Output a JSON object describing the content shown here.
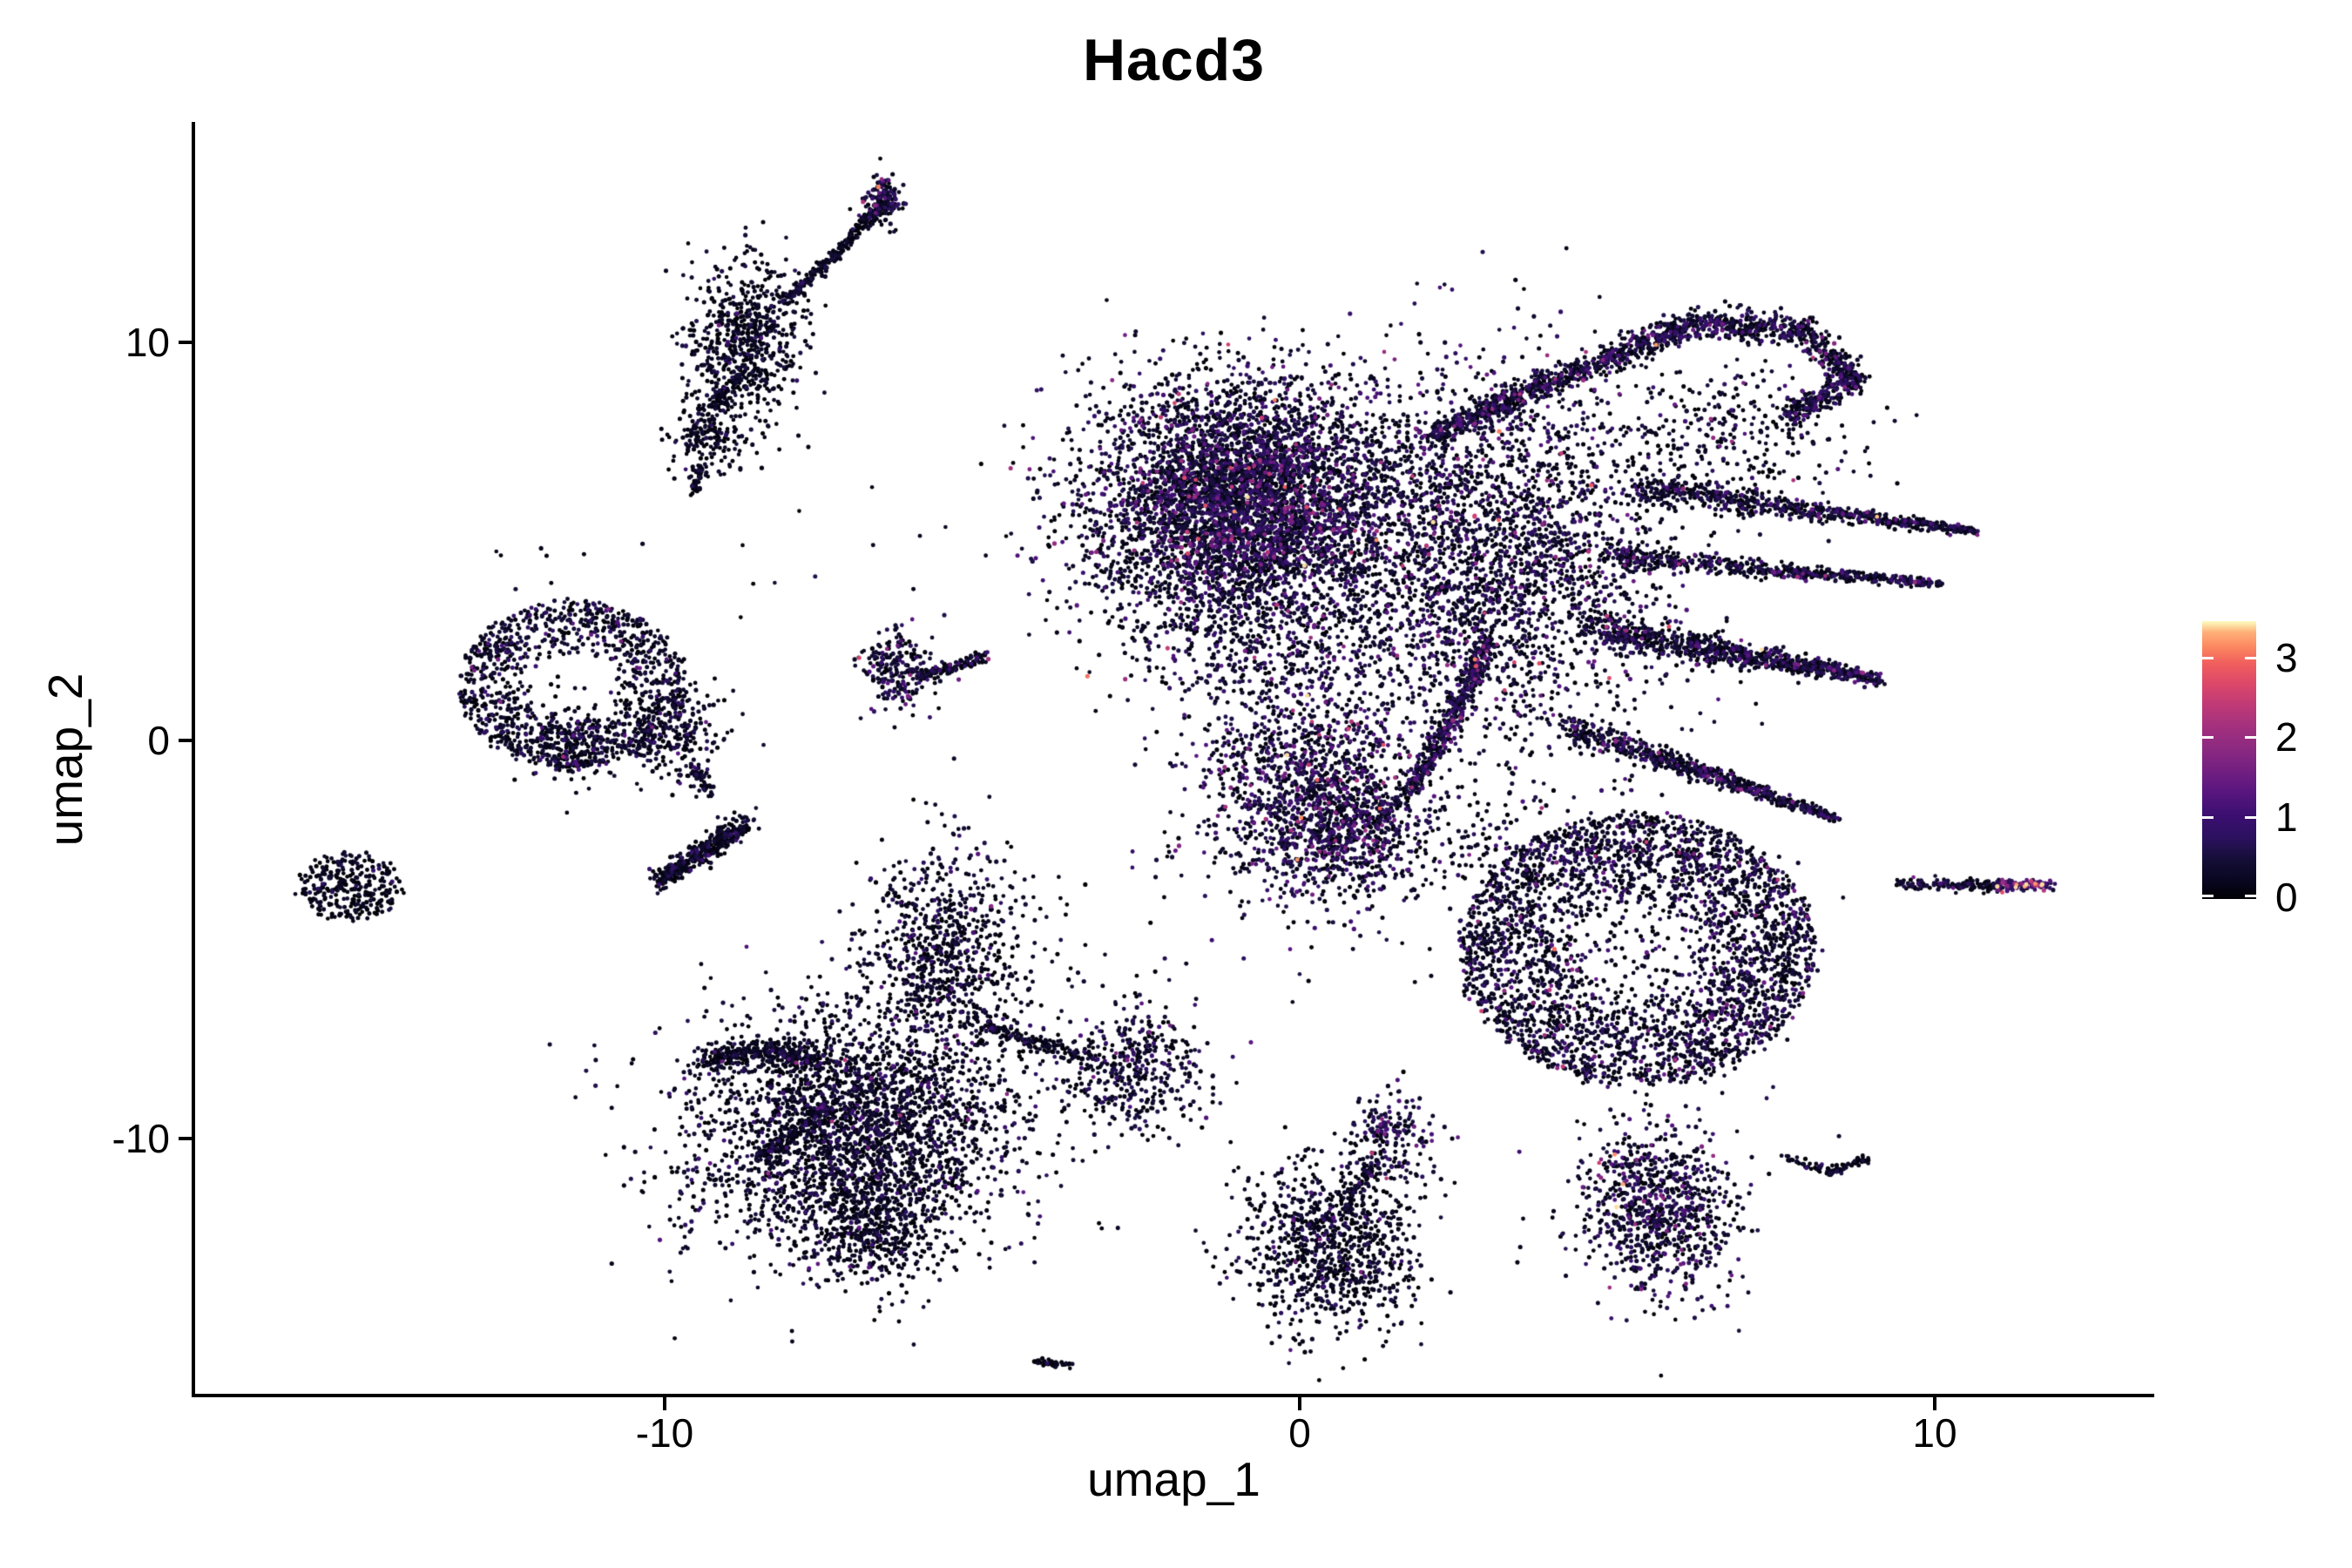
{
  "title": "Hacd3",
  "axes": {
    "x": {
      "label": "umap_1",
      "ticks": [
        {
          "v": -10,
          "label": "-10"
        },
        {
          "v": 0,
          "label": "0"
        },
        {
          "v": 10,
          "label": "10"
        }
      ]
    },
    "y": {
      "label": "umap_2",
      "ticks": [
        {
          "v": 10,
          "label": "10"
        },
        {
          "v": 0,
          "label": "0"
        },
        {
          "v": -10,
          "label": "-10"
        }
      ]
    }
  },
  "colorbar": {
    "ticks": [
      {
        "v": 3,
        "label": "3"
      },
      {
        "v": 2,
        "label": "2"
      },
      {
        "v": 1,
        "label": "1"
      },
      {
        "v": 0,
        "label": "0"
      }
    ],
    "vmin": 0,
    "vmax": 3.46,
    "palette": "magma"
  },
  "palette": {
    "magma_stops": [
      [
        0,
        "#000004"
      ],
      [
        0.07,
        "#0a0722"
      ],
      [
        0.14,
        "#140e36"
      ],
      [
        0.22,
        "#2c115f"
      ],
      [
        0.3,
        "#3b0f70"
      ],
      [
        0.38,
        "#57157e"
      ],
      [
        0.46,
        "#721f81"
      ],
      [
        0.54,
        "#8c2981"
      ],
      [
        0.62,
        "#a3307e"
      ],
      [
        0.7,
        "#c03a76"
      ],
      [
        0.78,
        "#de4968"
      ],
      [
        0.85,
        "#f1605d"
      ],
      [
        0.91,
        "#fc8961"
      ],
      [
        0.96,
        "#feb078"
      ],
      [
        1,
        "#fcfdbf"
      ]
    ]
  },
  "chart_data": {
    "type": "scatter",
    "title": "Hacd3",
    "xlabel": "umap_1",
    "ylabel": "umap_2",
    "xlim": [
      -17.39,
      13.43
    ],
    "ylim": [
      -16.45,
      15.49
    ],
    "grid": false,
    "legend_position": "right-colorbar",
    "point_radius_px": 2.3,
    "expression": {
      "vmin": 0,
      "vmax": 3.46,
      "colormap": "magma"
    },
    "clusters": [
      {
        "id": "tl-blob",
        "type": "gauss",
        "cx": -8.74,
        "cy": 10.07,
        "sx": 0.45,
        "sy": 0.95,
        "n": 650,
        "heat": 0.55
      },
      {
        "id": "tl-streak",
        "type": "path",
        "pts": [
          [
            -8.12,
            11.05
          ],
          [
            -7.3,
            12.2
          ],
          [
            -6.47,
            13.68
          ]
        ],
        "w": 7,
        "n": 260,
        "heat": 0.5
      },
      {
        "id": "tl-streak-knob",
        "type": "gauss",
        "cx": -6.55,
        "cy": 13.5,
        "sx": 0.18,
        "sy": 0.35,
        "n": 130,
        "heat": 1.2
      },
      {
        "id": "tl-sub",
        "type": "gauss",
        "cx": -9.29,
        "cy": 7.66,
        "sx": 0.3,
        "sy": 0.55,
        "n": 200,
        "heat": 0.5
      },
      {
        "id": "tl-trail",
        "type": "path",
        "pts": [
          [
            -8.8,
            9.2
          ],
          [
            -9.25,
            8.3
          ]
        ],
        "w": 10,
        "n": 80,
        "heat": 0.4
      },
      {
        "id": "tl-drip",
        "type": "path",
        "pts": [
          [
            -9.4,
            7.0
          ],
          [
            -9.55,
            6.2
          ]
        ],
        "w": 8,
        "n": 40,
        "heat": 0.4
      },
      {
        "id": "main-lobe",
        "type": "gauss",
        "cx": -0.85,
        "cy": 6.0,
        "sx": 1.25,
        "sy": 1.5,
        "n": 5200,
        "heat": 1.15
      },
      {
        "id": "hook-arm",
        "type": "path",
        "pts": [
          [
            2.03,
            7.66
          ],
          [
            4.22,
            9.19
          ],
          [
            6.28,
            10.5
          ],
          [
            7.93,
            10.28
          ],
          [
            8.75,
            9.08
          ],
          [
            7.65,
            8.1
          ]
        ],
        "w": 17,
        "n": 1500,
        "heat": 1.0
      },
      {
        "id": "central-mass",
        "type": "gauss",
        "cx": 3.13,
        "cy": 4.6,
        "sx": 1.3,
        "sy": 2.3,
        "n": 2600,
        "heat": 1.05
      },
      {
        "id": "arm-right-1",
        "type": "path",
        "pts": [
          [
            5.32,
            6.35
          ],
          [
            10.67,
            5.25
          ]
        ],
        "w": 18,
        "w2": 4,
        "n": 650,
        "heat": 0.9
      },
      {
        "id": "arm-right-2",
        "type": "path",
        "pts": [
          [
            4.91,
            4.6
          ],
          [
            10.12,
            3.94
          ]
        ],
        "w": 14,
        "w2": 4,
        "n": 550,
        "heat": 0.9
      },
      {
        "id": "arm-right-3",
        "type": "path",
        "pts": [
          [
            4.5,
            2.84
          ],
          [
            9.16,
            1.53
          ]
        ],
        "w": 22,
        "w2": 7,
        "n": 850,
        "heat": 0.9
      },
      {
        "id": "arm-lower",
        "type": "path",
        "pts": [
          [
            4.09,
            0.44
          ],
          [
            8.48,
            -1.97
          ]
        ],
        "w": 18,
        "w2": 5,
        "n": 650,
        "heat": 0.9
      },
      {
        "id": "lobe-fringe",
        "type": "gauss",
        "cx": -0.58,
        "cy": 2.41,
        "sx": 1.4,
        "sy": 0.8,
        "n": 420,
        "heat": 0.9
      },
      {
        "id": "hook-neck",
        "type": "gauss",
        "cx": 6.69,
        "cy": 7.66,
        "sx": 1.0,
        "sy": 1.0,
        "n": 320,
        "heat": 0.85
      },
      {
        "id": "mid-blob",
        "type": "gauss",
        "cx": 0.18,
        "cy": -1.2,
        "sx": 0.9,
        "sy": 1.4,
        "n": 1500,
        "heat": 1.3
      },
      {
        "id": "mid-blob-se",
        "type": "gauss",
        "cx": 0.93,
        "cy": -2.41,
        "sx": 0.5,
        "sy": 0.8,
        "n": 300,
        "heat": 1.2
      },
      {
        "id": "down-strand",
        "type": "path",
        "pts": [
          [
            2.99,
            2.52
          ],
          [
            2.37,
            0.44
          ],
          [
            1.82,
            -1.09
          ]
        ],
        "w": 13,
        "n": 450,
        "heat": 1.1
      },
      {
        "id": "down-strand-tail",
        "type": "path",
        "pts": [
          [
            1.82,
            -1.09
          ],
          [
            1.07,
            -2.19
          ]
        ],
        "w": 10,
        "n": 80,
        "heat": 0.8
      },
      {
        "id": "right-ring",
        "type": "ellipse",
        "cx": 5.32,
        "cy": -5.25,
        "rx": 2.8,
        "ry": 3.4,
        "hole": 0.3,
        "n": 2900,
        "heat": 0.95
      },
      {
        "id": "right-ring-core",
        "type": "gauss",
        "cx": 5.32,
        "cy": -5.25,
        "sx": 1.2,
        "sy": 1.5,
        "n": 350,
        "heat": 0.8
      },
      {
        "id": "right-ring-spur",
        "type": "gauss",
        "cx": 2.9,
        "cy": -2.6,
        "sx": 0.5,
        "sy": 0.7,
        "n": 90,
        "heat": 0.7
      },
      {
        "id": "ring-arc",
        "type": "path",
        "pts": [
          [
            7.65,
            -10.5
          ],
          [
            8.34,
            -10.83
          ],
          [
            8.96,
            -10.5
          ]
        ],
        "w": 5,
        "n": 90,
        "heat": 0.5
      },
      {
        "id": "streak-dark",
        "type": "path",
        "pts": [
          [
            9.38,
            -3.59
          ],
          [
            11.0,
            -3.66
          ]
        ],
        "w": 6,
        "n": 140,
        "heat": 0.7
      },
      {
        "id": "streak-hot",
        "type": "path",
        "pts": [
          [
            11.0,
            -3.66
          ],
          [
            11.84,
            -3.63
          ]
        ],
        "w": 6,
        "n": 120,
        "heat": 3.0
      },
      {
        "id": "left-fan",
        "type": "ellipse",
        "cx": -11.44,
        "cy": 1.38,
        "rx": 1.78,
        "ry": 2.08,
        "hole": 0.35,
        "n": 1100,
        "heat": 0.75
      },
      {
        "id": "left-fan-foot",
        "type": "gauss",
        "cx": -11.55,
        "cy": 0.0,
        "sx": 0.35,
        "sy": 0.5,
        "n": 180,
        "heat": 0.6
      },
      {
        "id": "left-fan-right",
        "type": "gauss",
        "cx": -9.84,
        "cy": 0.11,
        "sx": 0.4,
        "sy": 0.6,
        "n": 220,
        "heat": 0.7
      },
      {
        "id": "left-fan-tail",
        "type": "path",
        "pts": [
          [
            -9.6,
            -0.66
          ],
          [
            -9.25,
            -1.31
          ]
        ],
        "w": 8,
        "n": 50,
        "heat": 0.5
      },
      {
        "id": "lens-knob",
        "type": "gauss",
        "cx": -6.34,
        "cy": 1.75,
        "sx": 0.28,
        "sy": 0.55,
        "n": 220,
        "heat": 1.0
      },
      {
        "id": "lens-tail",
        "type": "path",
        "pts": [
          [
            -5.99,
            1.6
          ],
          [
            -4.95,
            2.1
          ]
        ],
        "w": 6,
        "n": 130,
        "heat": 0.7
      },
      {
        "id": "lens-tip-hot",
        "type": "gauss",
        "cx": -4.93,
        "cy": 2.12,
        "sx": 0.06,
        "sy": 0.1,
        "n": 4,
        "heat": 2.6
      },
      {
        "id": "small-left",
        "type": "ellipse",
        "cx": -14.95,
        "cy": -3.68,
        "rx": 0.8,
        "ry": 0.85,
        "hole": 0,
        "n": 300,
        "heat": 0.5
      },
      {
        "id": "small-diag",
        "type": "path",
        "pts": [
          [
            -10.12,
            -3.55
          ],
          [
            -8.67,
            -2.06
          ]
        ],
        "w": 13,
        "n": 380,
        "heat": 0.6
      },
      {
        "id": "bl-neck",
        "type": "gauss",
        "cx": -5.58,
        "cy": -5.36,
        "sx": 0.62,
        "sy": 1.3,
        "n": 800,
        "heat": 0.8
      },
      {
        "id": "bl-main",
        "type": "gauss",
        "cx": -7.02,
        "cy": -9.85,
        "sx": 1.3,
        "sy": 1.55,
        "n": 2900,
        "heat": 0.7
      },
      {
        "id": "bl-left-arm",
        "type": "path",
        "pts": [
          [
            -7.57,
            -7.99
          ],
          [
            -8.53,
            -7.77
          ],
          [
            -9.42,
            -7.99
          ]
        ],
        "w": 14,
        "n": 330,
        "heat": 0.55
      },
      {
        "id": "bl-right-chain",
        "type": "path",
        "pts": [
          [
            -5.05,
            -7.11
          ],
          [
            -4.01,
            -7.66
          ],
          [
            -3.25,
            -7.99
          ]
        ],
        "w": 8,
        "n": 160,
        "heat": 0.6
      },
      {
        "id": "bl-right-knob",
        "type": "gauss",
        "cx": -2.63,
        "cy": -8.27,
        "sx": 0.55,
        "sy": 0.8,
        "n": 420,
        "heat": 0.9
      },
      {
        "id": "bl-tip",
        "type": "gauss",
        "cx": -6.75,
        "cy": -12.36,
        "sx": 0.55,
        "sy": 0.6,
        "n": 350,
        "heat": 0.6
      },
      {
        "id": "bl-spur",
        "type": "path",
        "pts": [
          [
            -7.43,
            -9.19
          ],
          [
            -8.53,
            -10.5
          ]
        ],
        "w": 9,
        "n": 130,
        "heat": 0.5
      },
      {
        "id": "bc-knob",
        "type": "gauss",
        "cx": 1.44,
        "cy": -9.91,
        "sx": 0.32,
        "sy": 0.5,
        "n": 180,
        "heat": 1.1
      },
      {
        "id": "bc-main",
        "type": "gauss",
        "cx": 0.52,
        "cy": -12.69,
        "sx": 0.7,
        "sy": 1.05,
        "n": 950,
        "heat": 0.65
      },
      {
        "id": "bc-bridge",
        "type": "path",
        "pts": [
          [
            1.2,
            -10.5
          ],
          [
            0.73,
            -11.8
          ]
        ],
        "w": 10,
        "n": 70,
        "heat": 0.6
      },
      {
        "id": "br-blob",
        "type": "gauss",
        "cx": 5.67,
        "cy": -11.82,
        "sx": 0.62,
        "sy": 1.05,
        "n": 850,
        "heat": 1.0
      },
      {
        "id": "br-hot",
        "type": "gauss",
        "cx": 5.15,
        "cy": -11.2,
        "sx": 0.35,
        "sy": 0.65,
        "n": 35,
        "heat": 2.4
      },
      {
        "id": "dash",
        "type": "path",
        "pts": [
          [
            -4.17,
            -15.58
          ],
          [
            -3.62,
            -15.71
          ]
        ],
        "w": 4,
        "n": 40,
        "heat": 0.4
      },
      {
        "id": "sparse-1",
        "type": "gauss",
        "cx": 2.5,
        "cy": -3.2,
        "sx": 1.1,
        "sy": 1.0,
        "n": 25,
        "heat": 0.6
      },
      {
        "id": "sparse-2",
        "type": "gauss",
        "cx": -2.6,
        "cy": -4.6,
        "sx": 1.4,
        "sy": 1.4,
        "n": 18,
        "heat": 0.5
      },
      {
        "id": "sparse-3",
        "type": "gauss",
        "cx": -12.3,
        "cy": 4.2,
        "sx": 1.0,
        "sy": 1.0,
        "n": 12,
        "heat": 0.5
      },
      {
        "id": "sparse-4",
        "type": "gauss",
        "cx": -7.6,
        "cy": 5.2,
        "sx": 1.3,
        "sy": 1.3,
        "n": 12,
        "heat": 0.5
      },
      {
        "id": "sparse-5",
        "type": "gauss",
        "cx": -4.4,
        "cy": -4.4,
        "sx": 0.9,
        "sy": 0.9,
        "n": 14,
        "heat": 0.5
      }
    ]
  }
}
